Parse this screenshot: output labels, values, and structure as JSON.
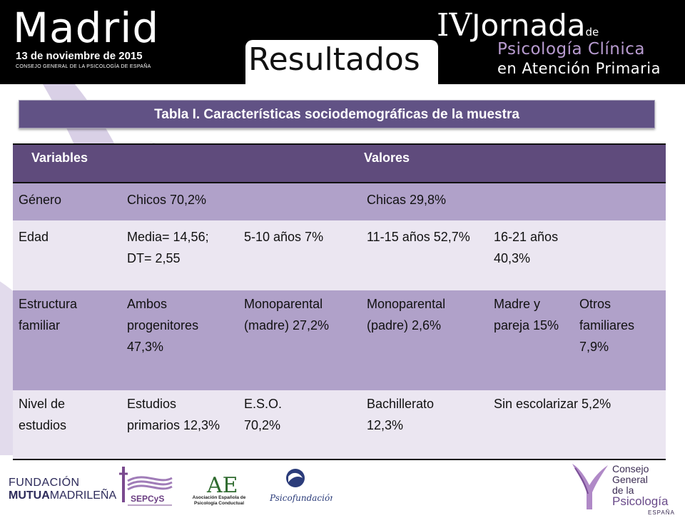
{
  "header": {
    "city": "Madrid",
    "date": "13 de noviembre de 2015",
    "organizer": "CONSEJO GENERAL DE LA PSICOLOGÍA DE ESPAÑA",
    "event_roman": "IV",
    "event_word": "Jornada",
    "event_de": "de",
    "event_line2": "Psicología Clínica",
    "event_line3": "en Atención Primaria"
  },
  "slide_title": "Resultados",
  "table": {
    "caption": "Tabla I. Características sociodemográficas de la muestra",
    "headers": {
      "variables": "Variables",
      "valores": "Valores"
    },
    "rows": [
      {
        "label": "Género",
        "cells": [
          "Chicos 70,2%",
          "",
          "Chicas 29,8%",
          "",
          ""
        ]
      },
      {
        "label": "Edad",
        "cells": [
          "Media= 14,56; DT= 2,55",
          "5-10 años 7%",
          "11-15 años 52,7%",
          "16-21 años  40,3%",
          ""
        ]
      },
      {
        "label": "Estructura familiar",
        "cells": [
          "Ambos progenitores 47,3%",
          "Monoparental (madre) 27,2%",
          "Monoparental (padre) 2,6%",
          "Madre y pareja 15%",
          "Otros familiares 7,9%"
        ]
      },
      {
        "label": "Nivel de estudios",
        "cells": [
          "Estudios primarios 12,3%",
          "E.S.O. 70,2%",
          "Bachillerato 12,3%",
          "Sin escolarizar 5,2%",
          ""
        ]
      }
    ]
  },
  "footer": {
    "fundacion_line1": "FUNDACIÓN",
    "fundacion_bold": "MUTUA",
    "fundacion_rest": "MADRILEÑA",
    "sepcys": "SEPCyS",
    "aepc": "Asociación Española de Psicología Conductual",
    "aepc_mark": "AE",
    "psicofundacion": "Psicofundación",
    "cgp_line1": "Consejo General",
    "cgp_line2a": "de la",
    "cgp_line2b": "Psicología",
    "cgp_line3": "ESPAÑA"
  },
  "colors": {
    "header_bg": "#000000",
    "accent_lilac": "#b89bd0",
    "table_header": "#5f4b7c",
    "row_dark": "#b0a1c9",
    "row_light": "#ebe6f1",
    "caption_bar": "#615285"
  }
}
